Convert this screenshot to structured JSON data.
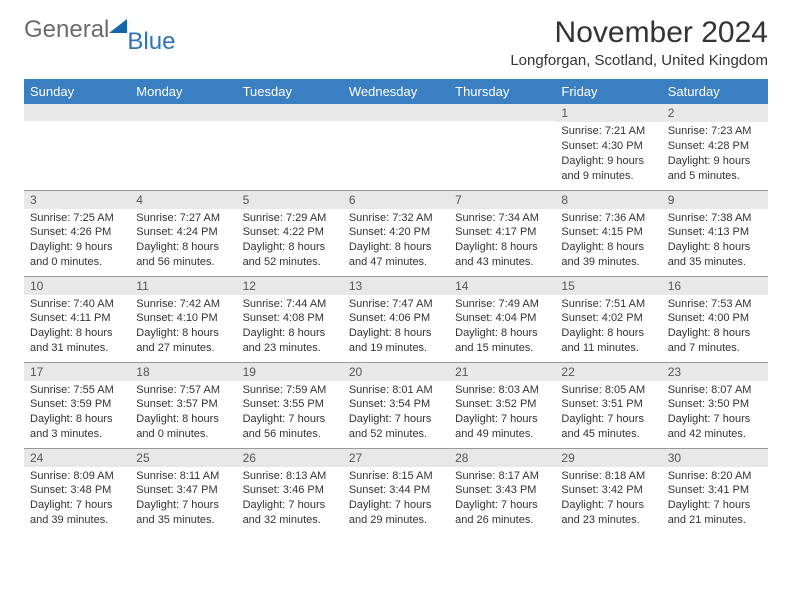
{
  "brand": {
    "gray": "General",
    "blue": "Blue"
  },
  "header": {
    "title": "November 2024",
    "location": "Longforgan, Scotland, United Kingdom"
  },
  "theme": {
    "header_bg": "#3a7fc2",
    "header_fg": "#ffffff",
    "daynum_bg": "#e8e8e8",
    "border": "#999999",
    "text": "#333333"
  },
  "days_of_week": [
    "Sunday",
    "Monday",
    "Tuesday",
    "Wednesday",
    "Thursday",
    "Friday",
    "Saturday"
  ],
  "weeks": [
    [
      {
        "n": "",
        "sr": "",
        "ss": "",
        "dl": ""
      },
      {
        "n": "",
        "sr": "",
        "ss": "",
        "dl": ""
      },
      {
        "n": "",
        "sr": "",
        "ss": "",
        "dl": ""
      },
      {
        "n": "",
        "sr": "",
        "ss": "",
        "dl": ""
      },
      {
        "n": "",
        "sr": "",
        "ss": "",
        "dl": ""
      },
      {
        "n": "1",
        "sr": "Sunrise: 7:21 AM",
        "ss": "Sunset: 4:30 PM",
        "dl": "Daylight: 9 hours and 9 minutes."
      },
      {
        "n": "2",
        "sr": "Sunrise: 7:23 AM",
        "ss": "Sunset: 4:28 PM",
        "dl": "Daylight: 9 hours and 5 minutes."
      }
    ],
    [
      {
        "n": "3",
        "sr": "Sunrise: 7:25 AM",
        "ss": "Sunset: 4:26 PM",
        "dl": "Daylight: 9 hours and 0 minutes."
      },
      {
        "n": "4",
        "sr": "Sunrise: 7:27 AM",
        "ss": "Sunset: 4:24 PM",
        "dl": "Daylight: 8 hours and 56 minutes."
      },
      {
        "n": "5",
        "sr": "Sunrise: 7:29 AM",
        "ss": "Sunset: 4:22 PM",
        "dl": "Daylight: 8 hours and 52 minutes."
      },
      {
        "n": "6",
        "sr": "Sunrise: 7:32 AM",
        "ss": "Sunset: 4:20 PM",
        "dl": "Daylight: 8 hours and 47 minutes."
      },
      {
        "n": "7",
        "sr": "Sunrise: 7:34 AM",
        "ss": "Sunset: 4:17 PM",
        "dl": "Daylight: 8 hours and 43 minutes."
      },
      {
        "n": "8",
        "sr": "Sunrise: 7:36 AM",
        "ss": "Sunset: 4:15 PM",
        "dl": "Daylight: 8 hours and 39 minutes."
      },
      {
        "n": "9",
        "sr": "Sunrise: 7:38 AM",
        "ss": "Sunset: 4:13 PM",
        "dl": "Daylight: 8 hours and 35 minutes."
      }
    ],
    [
      {
        "n": "10",
        "sr": "Sunrise: 7:40 AM",
        "ss": "Sunset: 4:11 PM",
        "dl": "Daylight: 8 hours and 31 minutes."
      },
      {
        "n": "11",
        "sr": "Sunrise: 7:42 AM",
        "ss": "Sunset: 4:10 PM",
        "dl": "Daylight: 8 hours and 27 minutes."
      },
      {
        "n": "12",
        "sr": "Sunrise: 7:44 AM",
        "ss": "Sunset: 4:08 PM",
        "dl": "Daylight: 8 hours and 23 minutes."
      },
      {
        "n": "13",
        "sr": "Sunrise: 7:47 AM",
        "ss": "Sunset: 4:06 PM",
        "dl": "Daylight: 8 hours and 19 minutes."
      },
      {
        "n": "14",
        "sr": "Sunrise: 7:49 AM",
        "ss": "Sunset: 4:04 PM",
        "dl": "Daylight: 8 hours and 15 minutes."
      },
      {
        "n": "15",
        "sr": "Sunrise: 7:51 AM",
        "ss": "Sunset: 4:02 PM",
        "dl": "Daylight: 8 hours and 11 minutes."
      },
      {
        "n": "16",
        "sr": "Sunrise: 7:53 AM",
        "ss": "Sunset: 4:00 PM",
        "dl": "Daylight: 8 hours and 7 minutes."
      }
    ],
    [
      {
        "n": "17",
        "sr": "Sunrise: 7:55 AM",
        "ss": "Sunset: 3:59 PM",
        "dl": "Daylight: 8 hours and 3 minutes."
      },
      {
        "n": "18",
        "sr": "Sunrise: 7:57 AM",
        "ss": "Sunset: 3:57 PM",
        "dl": "Daylight: 8 hours and 0 minutes."
      },
      {
        "n": "19",
        "sr": "Sunrise: 7:59 AM",
        "ss": "Sunset: 3:55 PM",
        "dl": "Daylight: 7 hours and 56 minutes."
      },
      {
        "n": "20",
        "sr": "Sunrise: 8:01 AM",
        "ss": "Sunset: 3:54 PM",
        "dl": "Daylight: 7 hours and 52 minutes."
      },
      {
        "n": "21",
        "sr": "Sunrise: 8:03 AM",
        "ss": "Sunset: 3:52 PM",
        "dl": "Daylight: 7 hours and 49 minutes."
      },
      {
        "n": "22",
        "sr": "Sunrise: 8:05 AM",
        "ss": "Sunset: 3:51 PM",
        "dl": "Daylight: 7 hours and 45 minutes."
      },
      {
        "n": "23",
        "sr": "Sunrise: 8:07 AM",
        "ss": "Sunset: 3:50 PM",
        "dl": "Daylight: 7 hours and 42 minutes."
      }
    ],
    [
      {
        "n": "24",
        "sr": "Sunrise: 8:09 AM",
        "ss": "Sunset: 3:48 PM",
        "dl": "Daylight: 7 hours and 39 minutes."
      },
      {
        "n": "25",
        "sr": "Sunrise: 8:11 AM",
        "ss": "Sunset: 3:47 PM",
        "dl": "Daylight: 7 hours and 35 minutes."
      },
      {
        "n": "26",
        "sr": "Sunrise: 8:13 AM",
        "ss": "Sunset: 3:46 PM",
        "dl": "Daylight: 7 hours and 32 minutes."
      },
      {
        "n": "27",
        "sr": "Sunrise: 8:15 AM",
        "ss": "Sunset: 3:44 PM",
        "dl": "Daylight: 7 hours and 29 minutes."
      },
      {
        "n": "28",
        "sr": "Sunrise: 8:17 AM",
        "ss": "Sunset: 3:43 PM",
        "dl": "Daylight: 7 hours and 26 minutes."
      },
      {
        "n": "29",
        "sr": "Sunrise: 8:18 AM",
        "ss": "Sunset: 3:42 PM",
        "dl": "Daylight: 7 hours and 23 minutes."
      },
      {
        "n": "30",
        "sr": "Sunrise: 8:20 AM",
        "ss": "Sunset: 3:41 PM",
        "dl": "Daylight: 7 hours and 21 minutes."
      }
    ]
  ]
}
